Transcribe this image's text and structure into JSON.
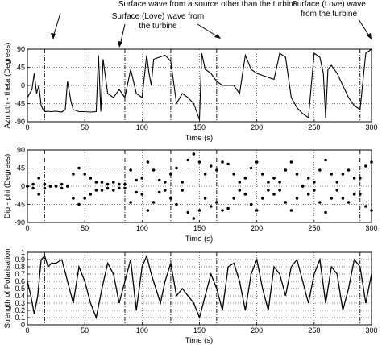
{
  "annotations": {
    "left_text": "Surface wave from a source other than the turbine",
    "mid_text": [
      "Surface (Love) wave from",
      "the turbine"
    ],
    "right_text": [
      "Surface (Love) wave",
      "from the turbine"
    ]
  },
  "event_markers": [
    0,
    15,
    85,
    125,
    165,
    290
  ],
  "chart_data": [
    {
      "type": "line",
      "ylabel": "Azmuth - theta (Degrees)",
      "xlabel": "Time (s)",
      "xlim": [
        0,
        300
      ],
      "ylim": [
        -90,
        90
      ],
      "xticks": [
        0,
        50,
        100,
        150,
        200,
        250,
        300
      ],
      "yticks": [
        -90,
        -45,
        0,
        45,
        90
      ],
      "xtick_labels": [
        "0",
        "50",
        "100",
        "150",
        "200",
        "250",
        "300"
      ],
      "ytick_labels": [
        "-90",
        "-45",
        "0",
        "45",
        "90"
      ],
      "grid": true,
      "series": [
        {
          "x": [
            0,
            2,
            4,
            6,
            8,
            10,
            12,
            14,
            16,
            18,
            20,
            25,
            30,
            33,
            35,
            38,
            40,
            45,
            50,
            55,
            60,
            62,
            64,
            66,
            70,
            75,
            80,
            85,
            90,
            95,
            100,
            104,
            106,
            108,
            110,
            115,
            120,
            125,
            130,
            135,
            140,
            145,
            150,
            152,
            155,
            160,
            165,
            170,
            175,
            180,
            185,
            190,
            195,
            200,
            205,
            210,
            215,
            220,
            225,
            230,
            235,
            240,
            245,
            250,
            255,
            258,
            260,
            262,
            265,
            270,
            275,
            280,
            285,
            290,
            295,
            300
          ],
          "y": [
            -30,
            -20,
            -10,
            30,
            -20,
            0,
            -50,
            -62,
            -65,
            -64,
            -65,
            -64,
            -66,
            -60,
            10,
            -40,
            -60,
            -65,
            -65,
            -66,
            -65,
            75,
            -65,
            65,
            -20,
            -30,
            -10,
            -30,
            40,
            -20,
            -30,
            75,
            30,
            0,
            65,
            70,
            75,
            60,
            -45,
            -20,
            -30,
            -45,
            -85,
            80,
            40,
            30,
            10,
            0,
            0,
            0,
            -20,
            75,
            40,
            30,
            25,
            20,
            15,
            80,
            70,
            -30,
            -55,
            -70,
            -80,
            80,
            70,
            30,
            -80,
            40,
            50,
            30,
            0,
            -30,
            -50,
            -60,
            80,
            90
          ]
        }
      ]
    },
    {
      "type": "scatter",
      "ylabel": "Dip - phi (Degrees)",
      "xlabel": "Time (s)",
      "xlim": [
        0,
        300
      ],
      "ylim": [
        -90,
        90
      ],
      "xticks": [
        0,
        50,
        100,
        150,
        200,
        250,
        300
      ],
      "yticks": [
        -90,
        -45,
        0,
        45,
        90
      ],
      "xtick_labels": [
        "0",
        "50",
        "100",
        "150",
        "200",
        "250",
        "300"
      ],
      "ytick_labels": [
        "-90",
        "-45",
        "0",
        "45",
        "90"
      ],
      "grid": true,
      "series": [
        {
          "x": [
            0,
            5,
            10,
            15,
            20,
            25,
            30,
            35,
            40,
            45,
            50,
            55,
            60,
            65,
            70,
            75,
            80,
            85,
            90,
            95,
            100,
            105,
            110,
            115,
            120,
            125,
            130,
            135,
            140,
            145,
            150,
            155,
            160,
            165,
            170,
            175,
            180,
            185,
            190,
            195,
            200,
            205,
            210,
            215,
            220,
            225,
            230,
            235,
            240,
            245,
            250,
            255,
            260,
            265,
            270,
            275,
            280,
            285,
            290,
            295,
            300
          ],
          "y": [
            0,
            -5,
            20,
            5,
            0,
            0,
            5,
            0,
            30,
            45,
            30,
            20,
            10,
            10,
            5,
            -10,
            -5,
            5,
            -40,
            -15,
            -20,
            60,
            40,
            15,
            -10,
            -30,
            -45,
            10,
            65,
            80,
            60,
            -30,
            -50,
            -40,
            -60,
            -55,
            -30,
            -10,
            20,
            45,
            60,
            30,
            -10,
            -20,
            10,
            40,
            60,
            30,
            0,
            -20,
            10,
            40,
            65,
            30,
            -10,
            -30,
            -40,
            -20,
            20,
            50,
            60
          ]
        },
        {
          "x": [
            0,
            5,
            10,
            15,
            20,
            25,
            30,
            35,
            40,
            45,
            50,
            55,
            60,
            65,
            70,
            75,
            80,
            85,
            90,
            95,
            100,
            105,
            110,
            115,
            120,
            125,
            130,
            135,
            140,
            145,
            150,
            155,
            160,
            165,
            170,
            175,
            180,
            185,
            190,
            195,
            200,
            205,
            210,
            215,
            220,
            225,
            230,
            235,
            240,
            245,
            250,
            255,
            260,
            265,
            270,
            275,
            280,
            285,
            290,
            295,
            300
          ],
          "y": [
            0,
            5,
            -20,
            -5,
            0,
            0,
            -5,
            0,
            -30,
            -45,
            -30,
            -20,
            -10,
            -10,
            -5,
            10,
            5,
            -5,
            40,
            15,
            20,
            -60,
            -40,
            -15,
            10,
            30,
            45,
            -10,
            -65,
            -80,
            -60,
            30,
            50,
            40,
            60,
            55,
            30,
            10,
            -20,
            -45,
            -60,
            -30,
            10,
            20,
            -10,
            -40,
            -60,
            -30,
            0,
            20,
            -10,
            -40,
            -65,
            -30,
            10,
            30,
            40,
            20,
            -20,
            -50,
            -60
          ]
        }
      ]
    },
    {
      "type": "line",
      "ylabel": "Strength of Polarisation",
      "xlabel": "Time (s)",
      "xlim": [
        0,
        300
      ],
      "ylim": [
        0,
        1
      ],
      "xticks": [
        0,
        50,
        100,
        150,
        200,
        250,
        300
      ],
      "yticks": [
        0,
        0.1,
        0.2,
        0.3,
        0.4,
        0.5,
        0.6,
        0.7,
        0.8,
        0.9,
        1
      ],
      "xtick_labels": [
        "0",
        "50",
        "100",
        "150",
        "200",
        "250",
        "300"
      ],
      "ytick_labels": [
        "0",
        "0.1",
        "0.2",
        "0.3",
        "0.4",
        "0.5",
        "0.6",
        "0.7",
        "0.8",
        "0.9",
        "1"
      ],
      "grid": true,
      "series": [
        {
          "x": [
            0,
            3,
            6,
            9,
            12,
            15,
            18,
            21,
            25,
            30,
            35,
            40,
            45,
            50,
            55,
            60,
            65,
            70,
            75,
            80,
            85,
            90,
            95,
            100,
            104,
            108,
            112,
            116,
            120,
            125,
            130,
            135,
            140,
            145,
            150,
            155,
            160,
            165,
            170,
            175,
            180,
            185,
            190,
            195,
            200,
            205,
            210,
            215,
            220,
            225,
            230,
            235,
            240,
            245,
            250,
            255,
            260,
            265,
            270,
            275,
            280,
            285,
            290,
            295,
            300
          ],
          "y": [
            0.6,
            0.4,
            0.15,
            0.4,
            0.9,
            0.95,
            0.8,
            0.85,
            0.85,
            0.9,
            0.6,
            0.3,
            0.8,
            0.6,
            0.3,
            0.1,
            0.5,
            0.85,
            0.7,
            0.3,
            0.6,
            0.9,
            0.2,
            0.8,
            0.95,
            0.7,
            0.5,
            0.3,
            0.6,
            0.85,
            0.4,
            0.5,
            0.4,
            0.3,
            0.1,
            0.4,
            0.7,
            0.5,
            0.2,
            0.8,
            0.85,
            0.6,
            0.2,
            0.7,
            0.9,
            0.5,
            0.2,
            0.8,
            0.7,
            0.4,
            0.8,
            0.9,
            0.6,
            0.3,
            0.7,
            0.9,
            0.3,
            0.8,
            0.7,
            0.2,
            0.5,
            0.9,
            0.8,
            0.3,
            0.7
          ]
        }
      ]
    }
  ]
}
